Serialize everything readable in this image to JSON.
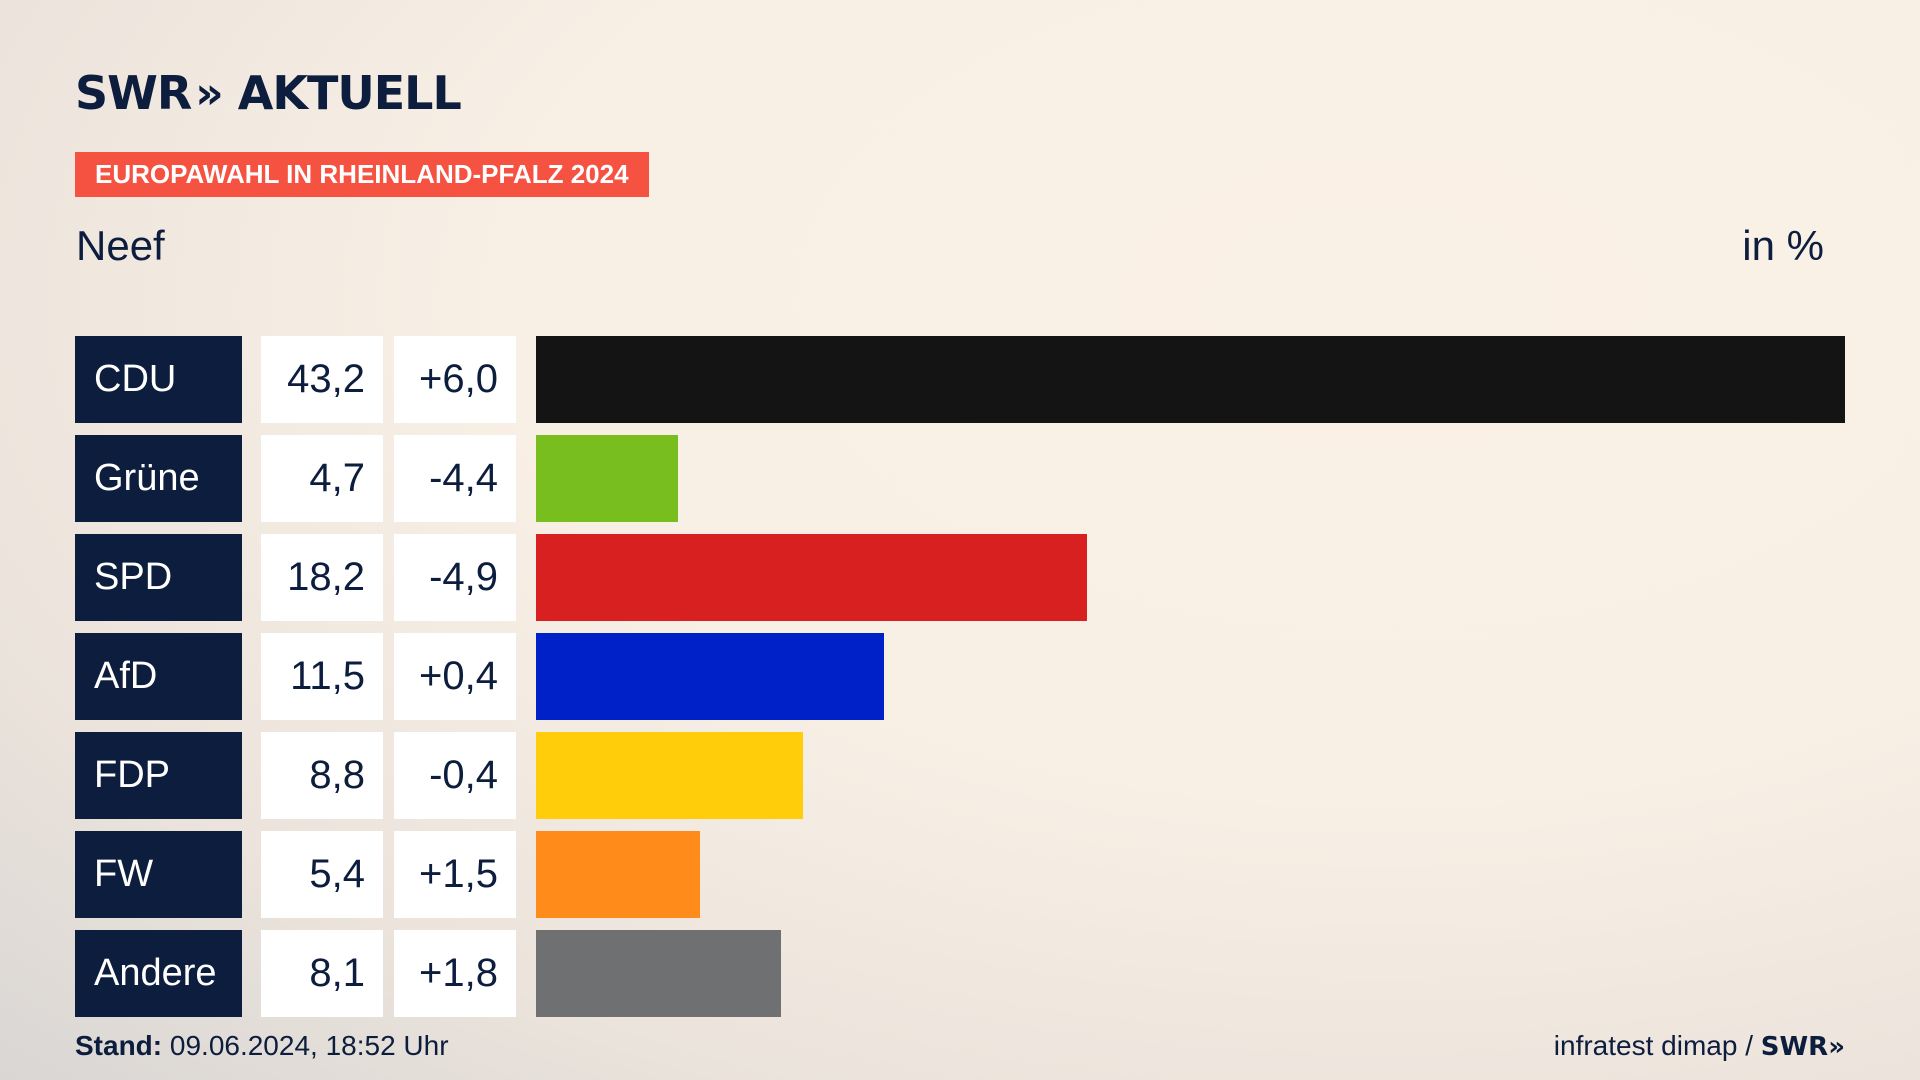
{
  "brand": {
    "name": "SWR",
    "chevrons": "»",
    "product": "AKTUELL"
  },
  "tag": "EUROPAWAHL IN RHEINLAND-PFALZ 2024",
  "place": "Neef",
  "unit": "in %",
  "colors": {
    "navy": "#0d1d3d",
    "tag": "#f55242"
  },
  "chart_data": {
    "type": "bar",
    "orientation": "horizontal",
    "categories": [
      "CDU",
      "Grüne",
      "SPD",
      "AfD",
      "FDP",
      "FW",
      "Andere"
    ],
    "values": [
      43.2,
      4.7,
      18.2,
      11.5,
      8.8,
      5.4,
      8.1
    ],
    "value_labels": [
      "43,2",
      "4,7",
      "18,2",
      "11,5",
      "8,8",
      "5,4",
      "8,1"
    ],
    "diff_labels": [
      "+6,0",
      "-4,4",
      "-4,9",
      "+0,4",
      "-0,4",
      "+1,5",
      "+1,8"
    ],
    "bar_colors": [
      "#141414",
      "#78be1e",
      "#d7201f",
      "#0021c8",
      "#ffcd0a",
      "#ff8c1a",
      "#6e7072"
    ],
    "xlim": [
      0,
      43.2
    ]
  },
  "footer": {
    "stand_label": "Stand:",
    "stand_value": "09.06.2024, 18:52 Uhr",
    "source": "infratest dimap /",
    "source_brand": "SWR"
  }
}
